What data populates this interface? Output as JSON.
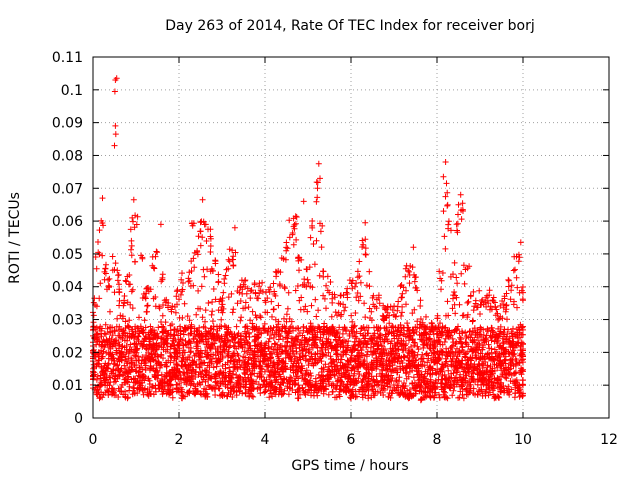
{
  "chart_data": {
    "type": "scatter",
    "title": "Day 263 of 2014, Rate Of TEC Index for receiver borj",
    "xlabel": "GPS time / hours",
    "ylabel": "ROTI / TECUs",
    "xlim": [
      0,
      12
    ],
    "ylim": [
      0,
      0.11
    ],
    "xticks": [
      0,
      2,
      4,
      6,
      8,
      10,
      12
    ],
    "xtick_labels": [
      "0",
      "2",
      "4",
      "6",
      "8",
      "10",
      "12"
    ],
    "yticks": [
      0,
      0.01,
      0.02,
      0.03,
      0.04,
      0.05,
      0.06,
      0.07,
      0.08,
      0.09,
      0.1,
      0.11
    ],
    "ytick_labels": [
      "0",
      "0.01",
      "0.02",
      "0.03",
      "0.04",
      "0.05",
      "0.06",
      "0.07",
      "0.08",
      "0.09",
      "0.1",
      "0.11"
    ],
    "grid": true,
    "marker": "+",
    "series": [
      {
        "name": "ROTI",
        "color": "#ff0000",
        "x": [
          0.0,
          0.1,
          0.2,
          0.3,
          0.4,
          0.5,
          0.6,
          0.7,
          0.8,
          0.9,
          1.0,
          1.1,
          1.2,
          1.3,
          1.4,
          1.5,
          1.6,
          1.7,
          1.8,
          1.9,
          2.0,
          2.1,
          2.2,
          2.3,
          2.4,
          2.5,
          2.6,
          2.7,
          2.8,
          2.9,
          3.0,
          3.1,
          3.2,
          3.3,
          3.4,
          3.5,
          3.6,
          3.7,
          3.8,
          3.9,
          4.0,
          4.1,
          4.2,
          4.3,
          4.4,
          4.5,
          4.6,
          4.7,
          4.8,
          4.9,
          5.0,
          5.1,
          5.2,
          5.3,
          5.4,
          5.5,
          5.6,
          5.7,
          5.8,
          5.9,
          6.0,
          6.1,
          6.2,
          6.3,
          6.4,
          6.5,
          6.6,
          6.7,
          6.8,
          6.9,
          7.0,
          7.1,
          7.2,
          7.3,
          7.4,
          7.5,
          7.6,
          7.7,
          7.8,
          7.9,
          8.0,
          8.1,
          8.2,
          8.3,
          8.4,
          8.5,
          8.6,
          8.7,
          8.8,
          8.9,
          9.0,
          9.1,
          9.2,
          9.3,
          9.4,
          9.5,
          9.6,
          9.7,
          9.8,
          9.9,
          10.0
        ],
        "y_low": [
          0.008,
          0.007,
          0.006,
          0.006,
          0.007,
          0.006,
          0.005,
          0.006,
          0.006,
          0.007,
          0.007,
          0.008,
          0.007,
          0.006,
          0.007,
          0.008,
          0.007,
          0.007,
          0.006,
          0.006,
          0.007,
          0.006,
          0.006,
          0.007,
          0.007,
          0.006,
          0.006,
          0.006,
          0.007,
          0.007,
          0.006,
          0.006,
          0.006,
          0.006,
          0.007,
          0.007,
          0.006,
          0.006,
          0.007,
          0.007,
          0.007,
          0.006,
          0.006,
          0.007,
          0.007,
          0.006,
          0.006,
          0.007,
          0.006,
          0.006,
          0.007,
          0.006,
          0.006,
          0.006,
          0.007,
          0.007,
          0.006,
          0.006,
          0.007,
          0.007,
          0.006,
          0.006,
          0.007,
          0.006,
          0.006,
          0.006,
          0.006,
          0.007,
          0.007,
          0.006,
          0.006,
          0.007,
          0.006,
          0.006,
          0.006,
          0.006,
          0.005,
          0.006,
          0.006,
          0.006,
          0.007,
          0.006,
          0.006,
          0.007,
          0.006,
          0.006,
          0.006,
          0.007,
          0.007,
          0.007,
          0.007,
          0.006,
          0.006,
          0.006,
          0.006,
          0.006,
          0.007,
          0.007,
          0.006,
          0.006,
          0.006
        ],
        "y_high": [
          0.037,
          0.054,
          0.063,
          0.047,
          0.043,
          0.05,
          0.046,
          0.039,
          0.045,
          0.061,
          0.064,
          0.05,
          0.04,
          0.044,
          0.051,
          0.055,
          0.044,
          0.037,
          0.037,
          0.038,
          0.039,
          0.045,
          0.047,
          0.06,
          0.055,
          0.06,
          0.063,
          0.058,
          0.049,
          0.044,
          0.039,
          0.046,
          0.053,
          0.051,
          0.044,
          0.043,
          0.041,
          0.04,
          0.042,
          0.043,
          0.039,
          0.04,
          0.041,
          0.045,
          0.05,
          0.055,
          0.061,
          0.063,
          0.05,
          0.043,
          0.046,
          0.061,
          0.072,
          0.062,
          0.046,
          0.044,
          0.039,
          0.037,
          0.038,
          0.04,
          0.044,
          0.042,
          0.048,
          0.055,
          0.045,
          0.04,
          0.038,
          0.036,
          0.035,
          0.034,
          0.035,
          0.036,
          0.041,
          0.047,
          0.049,
          0.044,
          0.036,
          0.031,
          0.028,
          0.031,
          0.035,
          0.047,
          0.07,
          0.06,
          0.048,
          0.063,
          0.066,
          0.048,
          0.04,
          0.037,
          0.039,
          0.038,
          0.04,
          0.037,
          0.035,
          0.036,
          0.038,
          0.043,
          0.05,
          0.05,
          0.04
        ],
        "outliers": [
          {
            "x": 0.52,
            "y": 0.103
          },
          {
            "x": 0.55,
            "y": 0.1035
          },
          {
            "x": 0.51,
            "y": 0.0995
          },
          {
            "x": 0.52,
            "y": 0.089
          },
          {
            "x": 0.53,
            "y": 0.0865
          },
          {
            "x": 0.5,
            "y": 0.083
          },
          {
            "x": 5.25,
            "y": 0.0775
          },
          {
            "x": 5.28,
            "y": 0.073
          },
          {
            "x": 5.22,
            "y": 0.07
          },
          {
            "x": 8.2,
            "y": 0.078
          },
          {
            "x": 8.15,
            "y": 0.0735
          },
          {
            "x": 8.22,
            "y": 0.0715
          },
          {
            "x": 8.55,
            "y": 0.068
          },
          {
            "x": 8.5,
            "y": 0.065
          },
          {
            "x": 8.6,
            "y": 0.0635
          },
          {
            "x": 0.22,
            "y": 0.067
          },
          {
            "x": 0.95,
            "y": 0.0665
          },
          {
            "x": 2.55,
            "y": 0.0665
          },
          {
            "x": 4.9,
            "y": 0.066
          },
          {
            "x": 6.33,
            "y": 0.0595
          },
          {
            "x": 9.95,
            "y": 0.0535
          },
          {
            "x": 1.58,
            "y": 0.059
          },
          {
            "x": 3.3,
            "y": 0.058
          },
          {
            "x": 7.45,
            "y": 0.052
          }
        ]
      }
    ]
  }
}
